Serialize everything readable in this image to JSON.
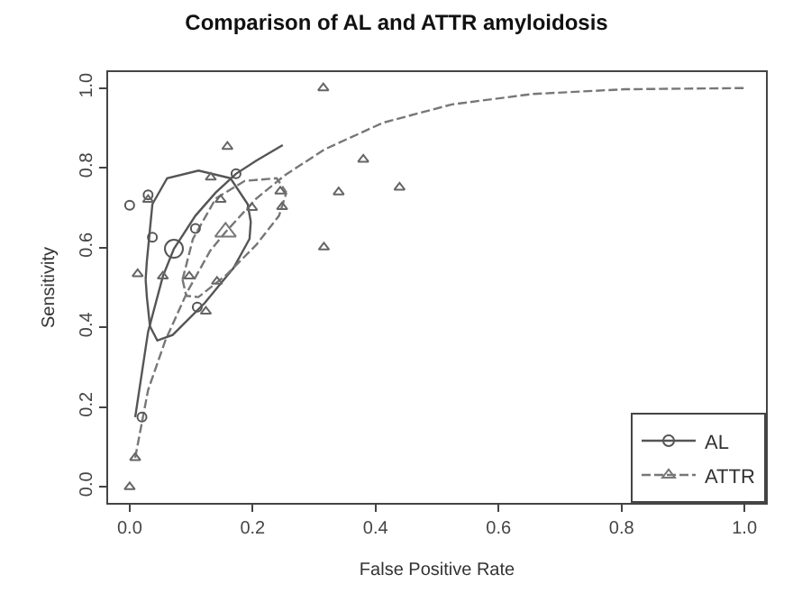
{
  "chart_data": {
    "type": "scatter",
    "title": "Comparison of AL and ATTR amyloidosis",
    "xlabel": "False Positive Rate",
    "ylabel": "Sensitivity",
    "xlim": [
      -0.035,
      1.035
    ],
    "ylim": [
      -0.04,
      1.04
    ],
    "xticks": [
      {
        "value": 0,
        "label": "0.0"
      },
      0.2,
      0.4,
      0.6,
      0.8,
      {
        "value": 1,
        "label": "1.0"
      }
    ],
    "yticks": [
      {
        "value": 0,
        "label": "0.0"
      },
      0.2,
      0.4,
      0.6,
      0.8,
      {
        "value": 1,
        "label": "1.0"
      }
    ],
    "grid": false,
    "legend": "bottom right",
    "series": [
      {
        "type": "line",
        "name": "AL",
        "color": "#555555",
        "line_style": "solid",
        "x": [
          0.009,
          0.03,
          0.054,
          0.072,
          0.107,
          0.14,
          0.173,
          0.206,
          0.249
        ],
        "values": [
          0.175,
          0.389,
          0.528,
          0.597,
          0.68,
          0.738,
          0.785,
          0.818,
          0.857
        ]
      },
      {
        "type": "line",
        "name": "ATTR",
        "color": "#777777",
        "line_style": "dashed",
        "x": [
          0.009,
          0.03,
          0.058,
          0.094,
          0.131,
          0.156,
          0.206,
          0.253,
          0.318,
          0.412,
          0.524,
          0.655,
          0.805,
          1
        ],
        "values": [
          0.073,
          0.243,
          0.367,
          0.49,
          0.592,
          0.639,
          0.723,
          0.782,
          0.847,
          0.913,
          0.959,
          0.985,
          0.997,
          1
        ]
      },
      {
        "type": "line",
        "color": "#555555",
        "line_style": "solid",
        "x": [
          0.026,
          0.028,
          0.037,
          0.061,
          0.112,
          0.164,
          0.192,
          0.197,
          null,
          0.026,
          0.028,
          0.033,
          0.045,
          0.07,
          0.122,
          0.169,
          0.195,
          0.197
        ],
        "values": [
          0.52,
          0.566,
          0.709,
          0.774,
          0.793,
          0.774,
          0.709,
          0.665,
          null,
          0.52,
          0.476,
          0.403,
          0.367,
          0.381,
          0.461,
          0.549,
          0.622,
          0.665
        ]
      },
      {
        "type": "line",
        "color": "#777777",
        "line_style": "dashed",
        "x": [
          0.086,
          0.103,
          0.14,
          0.187,
          0.239,
          0.255,
          null,
          0.086,
          0.092,
          0.112,
          0.159,
          0.206,
          0.243,
          0.255
        ],
        "values": [
          0.52,
          0.622,
          0.723,
          0.767,
          0.774,
          0.738,
          null,
          0.52,
          0.479,
          0.476,
          0.534,
          0.607,
          0.68,
          0.738
        ]
      },
      {
        "color": "#555555",
        "marker": "circle",
        "x": [
          0,
          0.03,
          0.037,
          0.02,
          0.107,
          0.11,
          0.173
        ],
        "values": [
          0.706,
          0.732,
          0.626,
          0.175,
          0.648,
          0.451,
          0.785
        ]
      },
      {
        "color": "#666666",
        "marker": "triangle",
        "x": [
          0,
          0.009,
          0.013,
          0.03,
          0.054,
          0.097,
          0.124,
          0.132,
          0.159,
          0.148,
          0.142,
          0.199,
          0.245,
          0.248,
          0.315,
          0.316,
          0.34,
          0.38,
          0.439
        ],
        "values": [
          0,
          0.073,
          0.534,
          0.72,
          0.528,
          0.528,
          0.44,
          0.776,
          0.853,
          0.72,
          0.515,
          0.7,
          0.741,
          0.702,
          1,
          0.601,
          0.739,
          0.821,
          0.751
        ]
      },
      {
        "color": "#555555",
        "marker": "circle",
        "x": [
          0.072
        ],
        "values": [
          0.597
        ]
      },
      {
        "color": "#777777",
        "marker": "triangle",
        "x": [
          0.156
        ],
        "values": [
          0.639
        ]
      }
    ]
  }
}
